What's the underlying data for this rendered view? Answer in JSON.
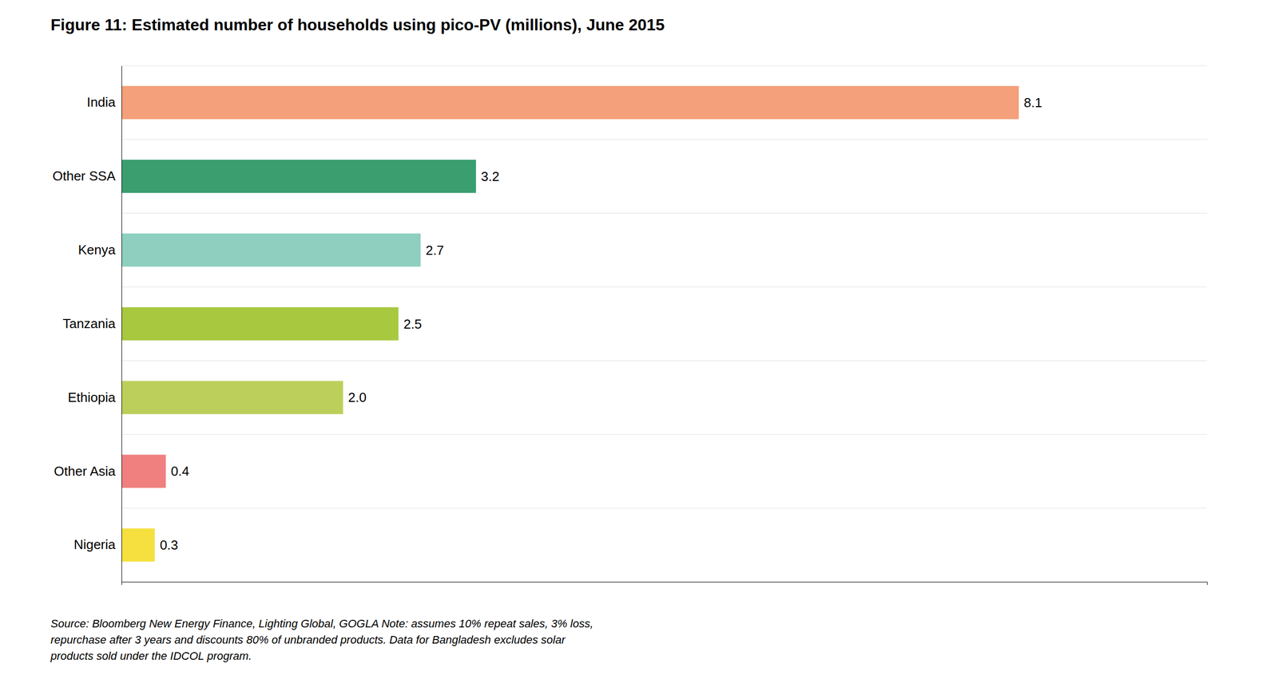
{
  "chart_data": {
    "type": "bar",
    "orientation": "horizontal",
    "title": "Figure 11: Estimated number of households using pico-PV (millions), June 2015",
    "annotations": [
      "Source: Bloomberg New Energy Finance, Lighting Global, GOGLA Note: assumes 10% repeat sales, 3% loss,\nrepurchase after 3 years and discounts 80% of unbranded products. Data for Bangladesh excludes solar\nproducts sold under the IDCOL program."
    ],
    "categories": [
      "India",
      "Other SSA",
      "Kenya",
      "Tanzania",
      "Ethiopia",
      "Other Asia",
      "Nigeria"
    ],
    "values": [
      8.1,
      3.2,
      2.7,
      2.5,
      2.0,
      0.4,
      0.3
    ],
    "value_labels": [
      "8.1",
      "3.2",
      "2.7",
      "2.5",
      "2.0",
      "0.4",
      "0.3"
    ],
    "colors": [
      "#F4A07A",
      "#3A9E6F",
      "#8ECFC0",
      "#A8C840",
      "#BCCF5A",
      "#F08080",
      "#F5E040"
    ],
    "data_labels": true,
    "tick_labels": "y",
    "xlim": [
      0,
      9.8
    ]
  }
}
